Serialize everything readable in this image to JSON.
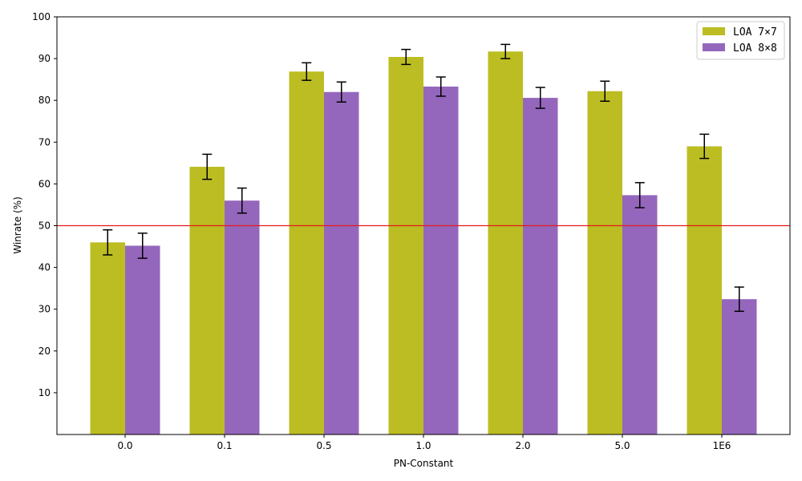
{
  "chart_data": {
    "type": "bar",
    "title": "",
    "xlabel": "PN-Constant",
    "ylabel": "Winrate (%)",
    "categories": [
      "0.0",
      "0.1",
      "0.5",
      "1.0",
      "2.0",
      "5.0",
      "1E6"
    ],
    "ylim": [
      0,
      100
    ],
    "yticks": [
      10,
      20,
      30,
      40,
      50,
      60,
      70,
      80,
      90,
      100
    ],
    "grid": false,
    "legend_position": "top-right",
    "reference_line": {
      "value": 50,
      "color": "#e41a1c"
    },
    "series": [
      {
        "name": "LOA 7×7",
        "color": "#bcbd22",
        "values": [
          46.0,
          64.1,
          86.9,
          90.4,
          91.7,
          82.2,
          69.0
        ],
        "errors": [
          3.0,
          3.0,
          2.1,
          1.8,
          1.7,
          2.4,
          2.9
        ]
      },
      {
        "name": "LOA 8×8",
        "color": "#9467bd",
        "values": [
          45.2,
          56.0,
          82.0,
          83.3,
          80.6,
          57.3,
          32.4
        ],
        "errors": [
          3.0,
          3.0,
          2.4,
          2.3,
          2.5,
          3.0,
          2.9
        ]
      }
    ]
  }
}
